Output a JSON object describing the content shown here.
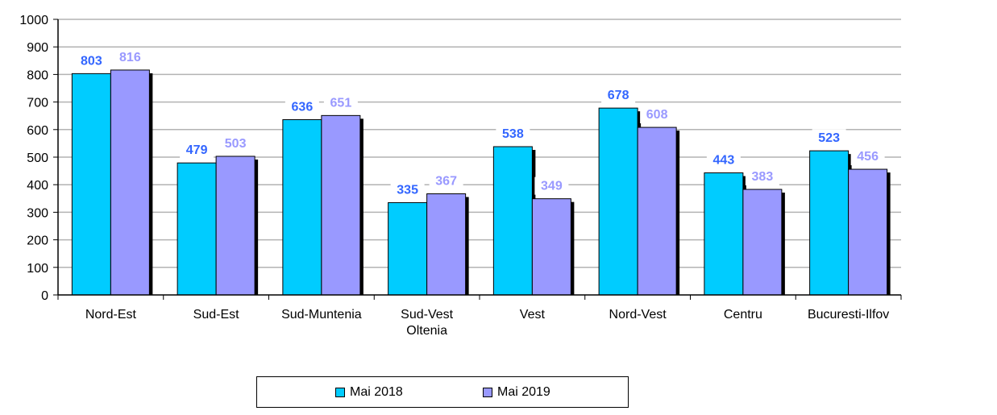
{
  "chart_data": {
    "type": "bar",
    "title": "",
    "xlabel": "",
    "ylabel": "",
    "ylim": [
      0,
      1000
    ],
    "yticks": [
      0,
      100,
      200,
      300,
      400,
      500,
      600,
      700,
      800,
      900,
      1000
    ],
    "grid": true,
    "legend_position": "bottom",
    "categories": [
      "Nord-Est",
      "Sud-Est",
      "Sud-Muntenia",
      "Sud-Vest\nOltenia",
      "Vest",
      "Nord-Vest",
      "Centru",
      "Bucuresti-Ilfov"
    ],
    "series": [
      {
        "name": "Mai 2018",
        "color": "#00ccff",
        "label_color": "#3366ff",
        "values": [
          803,
          479,
          636,
          335,
          538,
          678,
          443,
          523
        ]
      },
      {
        "name": "Mai 2019",
        "color": "#9999ff",
        "label_color": "#9999ff",
        "values": [
          816,
          503,
          651,
          367,
          349,
          608,
          383,
          456
        ]
      }
    ]
  }
}
